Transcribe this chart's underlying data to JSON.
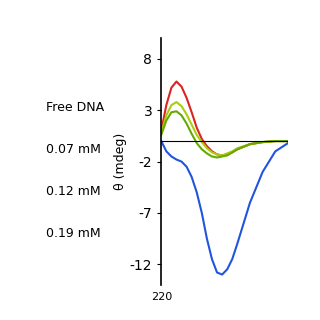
{
  "title": "",
  "ylabel": "θ (mdeg)",
  "xlabel": "",
  "ylim": [
    -14,
    10
  ],
  "yticks": [
    -12,
    -7,
    -2,
    3,
    8
  ],
  "xlim": [
    220,
    270
  ],
  "legend_labels": [
    "Free DNA",
    "0.07 mM",
    "0.12 mM",
    "0.19 mM"
  ],
  "line_colors": [
    "#dd2222",
    "#aacc11",
    "#66aa00",
    "#2255dd"
  ],
  "background_color": "#ffffff",
  "figsize": [
    3.2,
    3.2
  ],
  "dpi": 100,
  "series": {
    "free_dna": {
      "x": [
        220,
        222,
        224,
        226,
        228,
        230,
        232,
        234,
        236,
        238,
        240,
        242,
        244,
        246,
        248,
        250,
        255,
        260,
        265,
        270
      ],
      "y": [
        1.0,
        3.5,
        5.2,
        5.8,
        5.3,
        4.2,
        2.8,
        1.3,
        0.2,
        -0.5,
        -1.0,
        -1.3,
        -1.4,
        -1.3,
        -1.1,
        -0.8,
        -0.3,
        -0.1,
        0.0,
        0.0
      ]
    },
    "mm007": {
      "x": [
        220,
        222,
        224,
        226,
        228,
        230,
        232,
        234,
        236,
        238,
        240,
        242,
        244,
        246,
        248,
        250,
        255,
        260,
        265,
        270
      ],
      "y": [
        0.8,
        2.5,
        3.5,
        3.8,
        3.4,
        2.6,
        1.6,
        0.6,
        -0.1,
        -0.7,
        -1.1,
        -1.3,
        -1.4,
        -1.2,
        -1.0,
        -0.7,
        -0.3,
        -0.1,
        0.0,
        0.0
      ]
    },
    "mm012": {
      "x": [
        220,
        222,
        224,
        226,
        228,
        230,
        232,
        234,
        236,
        238,
        240,
        242,
        244,
        246,
        248,
        250,
        255,
        260,
        265,
        270
      ],
      "y": [
        0.6,
        2.0,
        2.8,
        2.9,
        2.5,
        1.7,
        0.7,
        -0.2,
        -0.8,
        -1.2,
        -1.5,
        -1.6,
        -1.5,
        -1.4,
        -1.1,
        -0.8,
        -0.3,
        -0.1,
        0.0,
        0.0
      ]
    },
    "mm019": {
      "x": [
        220,
        222,
        224,
        226,
        228,
        230,
        232,
        234,
        236,
        238,
        240,
        242,
        244,
        246,
        248,
        250,
        255,
        260,
        265,
        270
      ],
      "y": [
        0.0,
        -1.0,
        -1.5,
        -1.8,
        -2.0,
        -2.5,
        -3.5,
        -5.0,
        -7.0,
        -9.5,
        -11.5,
        -12.8,
        -13.0,
        -12.5,
        -11.5,
        -10.0,
        -6.0,
        -3.0,
        -1.0,
        -0.2
      ]
    }
  }
}
